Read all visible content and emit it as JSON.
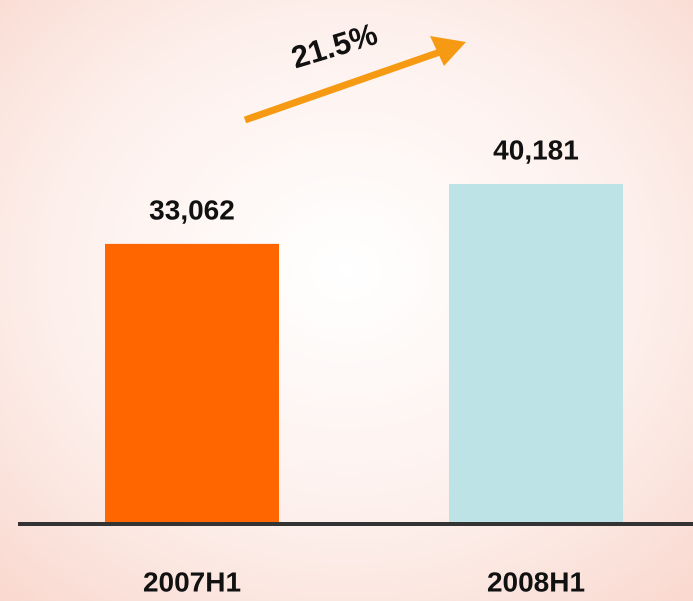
{
  "chart_data": {
    "type": "bar",
    "categories": [
      "2007H1",
      "2008H1"
    ],
    "values": [
      33062,
      40181
    ],
    "value_labels": [
      "33,062",
      "40,181"
    ],
    "colors": [
      "#ff6600",
      "#bde3e6"
    ],
    "annotation": "21.5%"
  }
}
